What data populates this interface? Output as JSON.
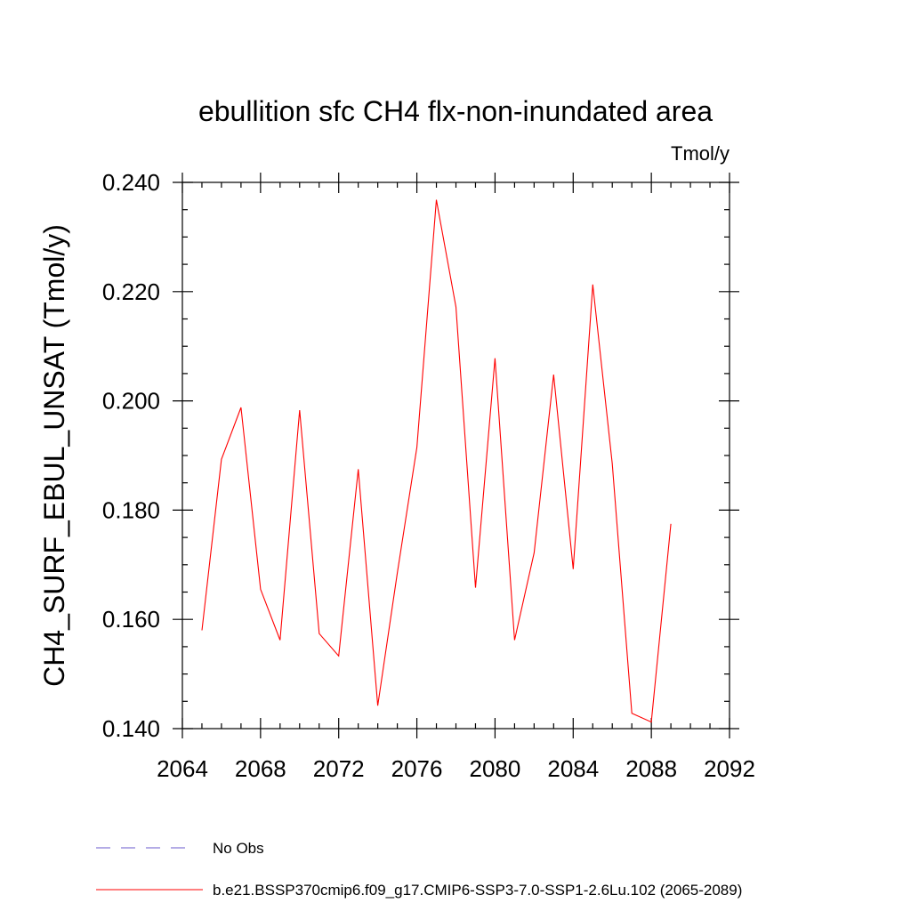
{
  "chart_data": {
    "type": "line",
    "title": "ebullition sfc CH4 flx-non-inundated area",
    "units": "Tmol/y",
    "ylabel": "CH4_SURF_EBUL_UNSAT  (Tmol/y)",
    "xlabel": "",
    "xlim": [
      2064,
      2092
    ],
    "ylim": [
      0.14,
      0.24
    ],
    "xticks": [
      2064,
      2068,
      2072,
      2076,
      2080,
      2084,
      2088,
      2092
    ],
    "xtick_labels": [
      "2064",
      "2068",
      "2072",
      "2076",
      "2080",
      "2084",
      "2088",
      "2092"
    ],
    "yticks": [
      0.14,
      0.16,
      0.18,
      0.2,
      0.22,
      0.24
    ],
    "ytick_labels": [
      "0.140",
      "0.160",
      "0.180",
      "0.200",
      "0.220",
      "0.240"
    ],
    "grid": false,
    "legend_position": "bottom",
    "series": [
      {
        "name": "b.e21.BSSP370cmip6.f09_g17.CMIP6-SSP3-7.0-SSP1-2.6Lu.102 (2065-2089)",
        "color": "#ff0000",
        "x": [
          2065,
          2066,
          2067,
          2068,
          2069,
          2070,
          2071,
          2072,
          2073,
          2074,
          2075,
          2076,
          2077,
          2078,
          2079,
          2080,
          2081,
          2082,
          2083,
          2084,
          2085,
          2086,
          2087,
          2088,
          2089
        ],
        "y": [
          0.158,
          0.1893,
          0.1988,
          0.1655,
          0.1562,
          0.1983,
          0.1574,
          0.1533,
          0.1875,
          0.1442,
          0.1685,
          0.1915,
          0.2368,
          0.2172,
          0.1658,
          0.2078,
          0.1562,
          0.1722,
          0.2048,
          0.1692,
          0.2213,
          0.1885,
          0.1428,
          0.1412,
          0.1775
        ]
      }
    ],
    "legend": [
      {
        "label": "No Obs",
        "color": "#6a5acd",
        "style": "dashed"
      },
      {
        "label": "b.e21.BSSP370cmip6.f09_g17.CMIP6-SSP3-7.0-SSP1-2.6Lu.102 (2065-2089)",
        "color": "#ff0000",
        "style": "solid"
      }
    ]
  }
}
